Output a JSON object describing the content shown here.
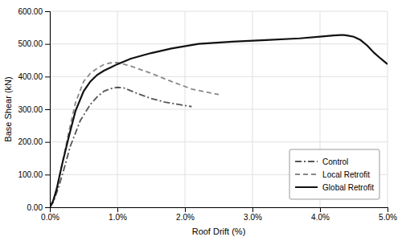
{
  "chart_data": {
    "type": "line",
    "xlabel": "Roof Drift (%)",
    "ylabel": "Base Shear (kN)",
    "xlim": [
      0.0,
      5.0
    ],
    "ylim": [
      0.0,
      600.0
    ],
    "xticks": [
      {
        "value": 0.0,
        "label": "0.0%"
      },
      {
        "value": 1.0,
        "label": "1.0%"
      },
      {
        "value": 2.0,
        "label": "2.0%"
      },
      {
        "value": 3.0,
        "label": "3.0%"
      },
      {
        "value": 4.0,
        "label": "4.0%"
      },
      {
        "value": 5.0,
        "label": "5.0%"
      }
    ],
    "yticks": [
      {
        "value": 0.0,
        "label": "0.00"
      },
      {
        "value": 100.0,
        "label": "100.00"
      },
      {
        "value": 200.0,
        "label": "200.00"
      },
      {
        "value": 300.0,
        "label": "300.00"
      },
      {
        "value": 400.0,
        "label": "400.00"
      },
      {
        "value": 500.0,
        "label": "500.00"
      },
      {
        "value": 600.0,
        "label": "600.00"
      }
    ],
    "grid": true,
    "legend": "lower right",
    "series": [
      {
        "name": "Control",
        "color": "#555555",
        "line_style": "dashdot",
        "x": [
          0.0,
          0.05,
          0.12,
          0.2,
          0.3,
          0.45,
          0.6,
          0.7,
          0.8,
          0.9,
          1.0,
          1.1,
          1.3,
          1.5,
          1.7,
          1.9,
          2.1
        ],
        "values": [
          0.0,
          15.0,
          55.0,
          110.0,
          185.0,
          265.0,
          315.0,
          338.0,
          355.0,
          363.0,
          367.0,
          365.0,
          348.0,
          333.0,
          322.0,
          315.0,
          308.0
        ]
      },
      {
        "name": "Local Retrofit",
        "color": "#888888",
        "line_style": "dashed",
        "x": [
          0.0,
          0.05,
          0.1,
          0.18,
          0.28,
          0.38,
          0.5,
          0.6,
          0.7,
          0.8,
          0.9,
          1.0,
          1.2,
          1.5,
          1.8,
          2.1,
          2.5
        ],
        "values": [
          0.0,
          20.0,
          55.0,
          130.0,
          230.0,
          320.0,
          385.0,
          410.0,
          425.0,
          437.0,
          442.0,
          443.0,
          432.0,
          410.0,
          385.0,
          362.0,
          345.0
        ]
      },
      {
        "name": "Global Retrofit",
        "color": "#111111",
        "line_style": "solid",
        "x": [
          0.0,
          0.05,
          0.1,
          0.18,
          0.28,
          0.38,
          0.5,
          0.6,
          0.7,
          0.8,
          0.9,
          1.0,
          1.2,
          1.5,
          1.8,
          2.2,
          2.7,
          3.2,
          3.7,
          4.0,
          4.1,
          4.2,
          4.3,
          4.35,
          4.4,
          4.5,
          4.6,
          4.7,
          4.8,
          4.9,
          5.0
        ],
        "values": [
          0.0,
          20.0,
          55.0,
          130.0,
          215.0,
          295.0,
          355.0,
          385.0,
          405.0,
          418.0,
          428.0,
          438.0,
          455.0,
          472.0,
          486.0,
          500.0,
          507.0,
          512.0,
          517.0,
          522.0,
          524.0,
          526.0,
          527.0,
          527.0,
          526.0,
          522.0,
          512.0,
          495.0,
          473.0,
          455.0,
          438.0
        ]
      }
    ]
  }
}
